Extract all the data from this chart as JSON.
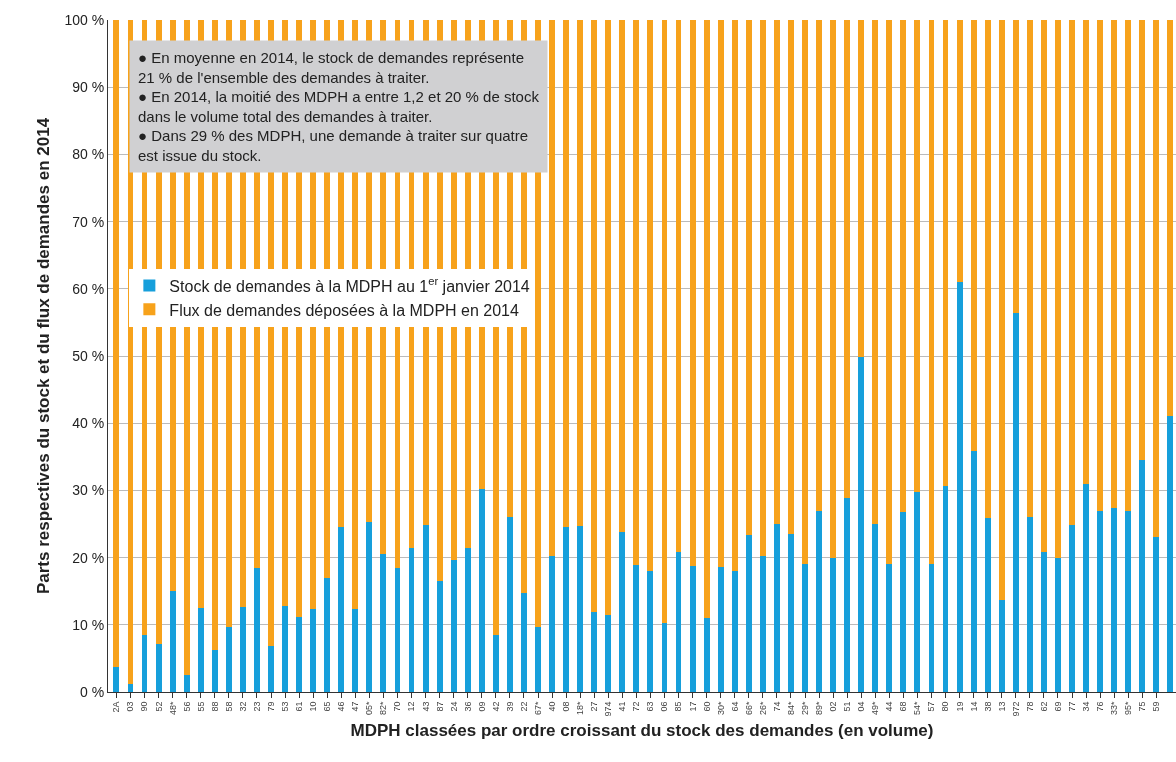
{
  "chart_data": {
    "type": "bar",
    "stacked": true,
    "xlabel": "MDPH classées par ordre croissant du stock des demandes (en volume)",
    "ylabel": "Parts respectives du stock et du flux de demandes en 2014",
    "categories": [
      "2A",
      "03",
      "90",
      "52",
      "48*",
      "56",
      "55",
      "88",
      "58",
      "32",
      "23",
      "79",
      "53",
      "61",
      "10",
      "65",
      "46",
      "47",
      "05*",
      "82*",
      "70",
      "12",
      "43",
      "87",
      "24",
      "36",
      "09",
      "42",
      "39",
      "22",
      "67*",
      "40",
      "08",
      "18*",
      "27",
      "974",
      "41",
      "72",
      "63",
      "06",
      "85",
      "17",
      "60",
      "30*",
      "64",
      "66*",
      "26*",
      "74",
      "84*",
      "29*",
      "89*",
      "02",
      "51",
      "04",
      "49*",
      "44",
      "68",
      "54*",
      "57",
      "80",
      "19",
      "14",
      "38",
      "13",
      "972",
      "78",
      "62",
      "69",
      "77",
      "34",
      "76",
      "33*",
      "95*",
      "75",
      "59",
      null
    ],
    "series": [
      {
        "name": "Stock de demandes à la MDPH au 1$^{er}$ janvier 2014",
        "color": "#169fdb",
        "values": [
          3.7,
          1.2,
          8.5,
          7.2,
          15,
          2.5,
          12.5,
          6.3,
          9.7,
          12.6,
          18.5,
          6.8,
          12.8,
          11.1,
          12.3,
          17,
          24.5,
          12.3,
          25.3,
          20.5,
          18.5,
          21.5,
          24.8,
          16.5,
          19.7,
          21.5,
          30.2,
          8.5,
          26,
          14.7,
          9.6,
          20.2,
          24.5,
          24.7,
          11.9,
          11.4,
          23.8,
          18.9,
          18,
          10.2,
          20.9,
          18.7,
          11,
          18.6,
          18,
          23.3,
          20.3,
          25,
          23.5,
          19,
          27,
          20,
          28.9,
          49.8,
          25,
          19,
          26.8,
          29.8,
          19,
          30.6,
          61,
          35.9,
          25.9,
          13.7,
          56.4,
          26,
          20.8,
          19.9,
          24.9,
          30.9,
          27,
          27.4,
          27,
          34.5,
          23,
          41
        ]
      },
      {
        "name": "Flux de demandes déposées à la MDPH en 2014",
        "color": "#f7a21b",
        "values": [
          96.3,
          98.8,
          91.5,
          92.8,
          85,
          97.5,
          87.5,
          93.7,
          90.3,
          87.4,
          81.5,
          93.2,
          87.2,
          88.9,
          87.7,
          83,
          75.5,
          87.7,
          74.7,
          79.5,
          81.5,
          78.5,
          75.2,
          83.5,
          80.3,
          78.5,
          69.8,
          91.5,
          74,
          85.3,
          90.4,
          79.8,
          75.5,
          75.3,
          88.1,
          88.6,
          76.2,
          81.1,
          82,
          89.8,
          79.1,
          81.3,
          89,
          81.4,
          82,
          76.7,
          79.7,
          75,
          76.5,
          81,
          73,
          80,
          71.1,
          50.2,
          75,
          81,
          73.2,
          70.2,
          81,
          69.4,
          39,
          64.1,
          74.1,
          86.3,
          43.6,
          74,
          79.2,
          80.1,
          75.1,
          69.1,
          73,
          72.6,
          73,
          65.5,
          77,
          59
        ]
      }
    ],
    "ylim": [
      0,
      100
    ],
    "yticks": [
      {
        "value": 0,
        "label": "0 %"
      },
      {
        "value": 10,
        "label": "10 %"
      },
      {
        "value": 20,
        "label": "20 %"
      },
      {
        "value": 30,
        "label": "30 %"
      },
      {
        "value": 40,
        "label": "40 %"
      },
      {
        "value": 50,
        "label": "50 %"
      },
      {
        "value": 60,
        "label": "60 %"
      },
      {
        "value": 70,
        "label": "70 %"
      },
      {
        "value": 80,
        "label": "80 %"
      },
      {
        "value": 90,
        "label": "90 %"
      },
      {
        "value": 100,
        "label": "100 %"
      }
    ],
    "grid": "y",
    "legend": "left",
    "annotations": [
      "● En moyenne en 2014, le stock de demandes représente\n21 % de l'ensemble des demandes à traiter.\n● En 2014, la moitié des MDPH a entre 1,2 et 20 % de stock\ndans le volume total des demandes à traiter.\n● Dans 29 % des MDPH, une demande à traiter sur quatre\nest issue du stock."
    ]
  }
}
